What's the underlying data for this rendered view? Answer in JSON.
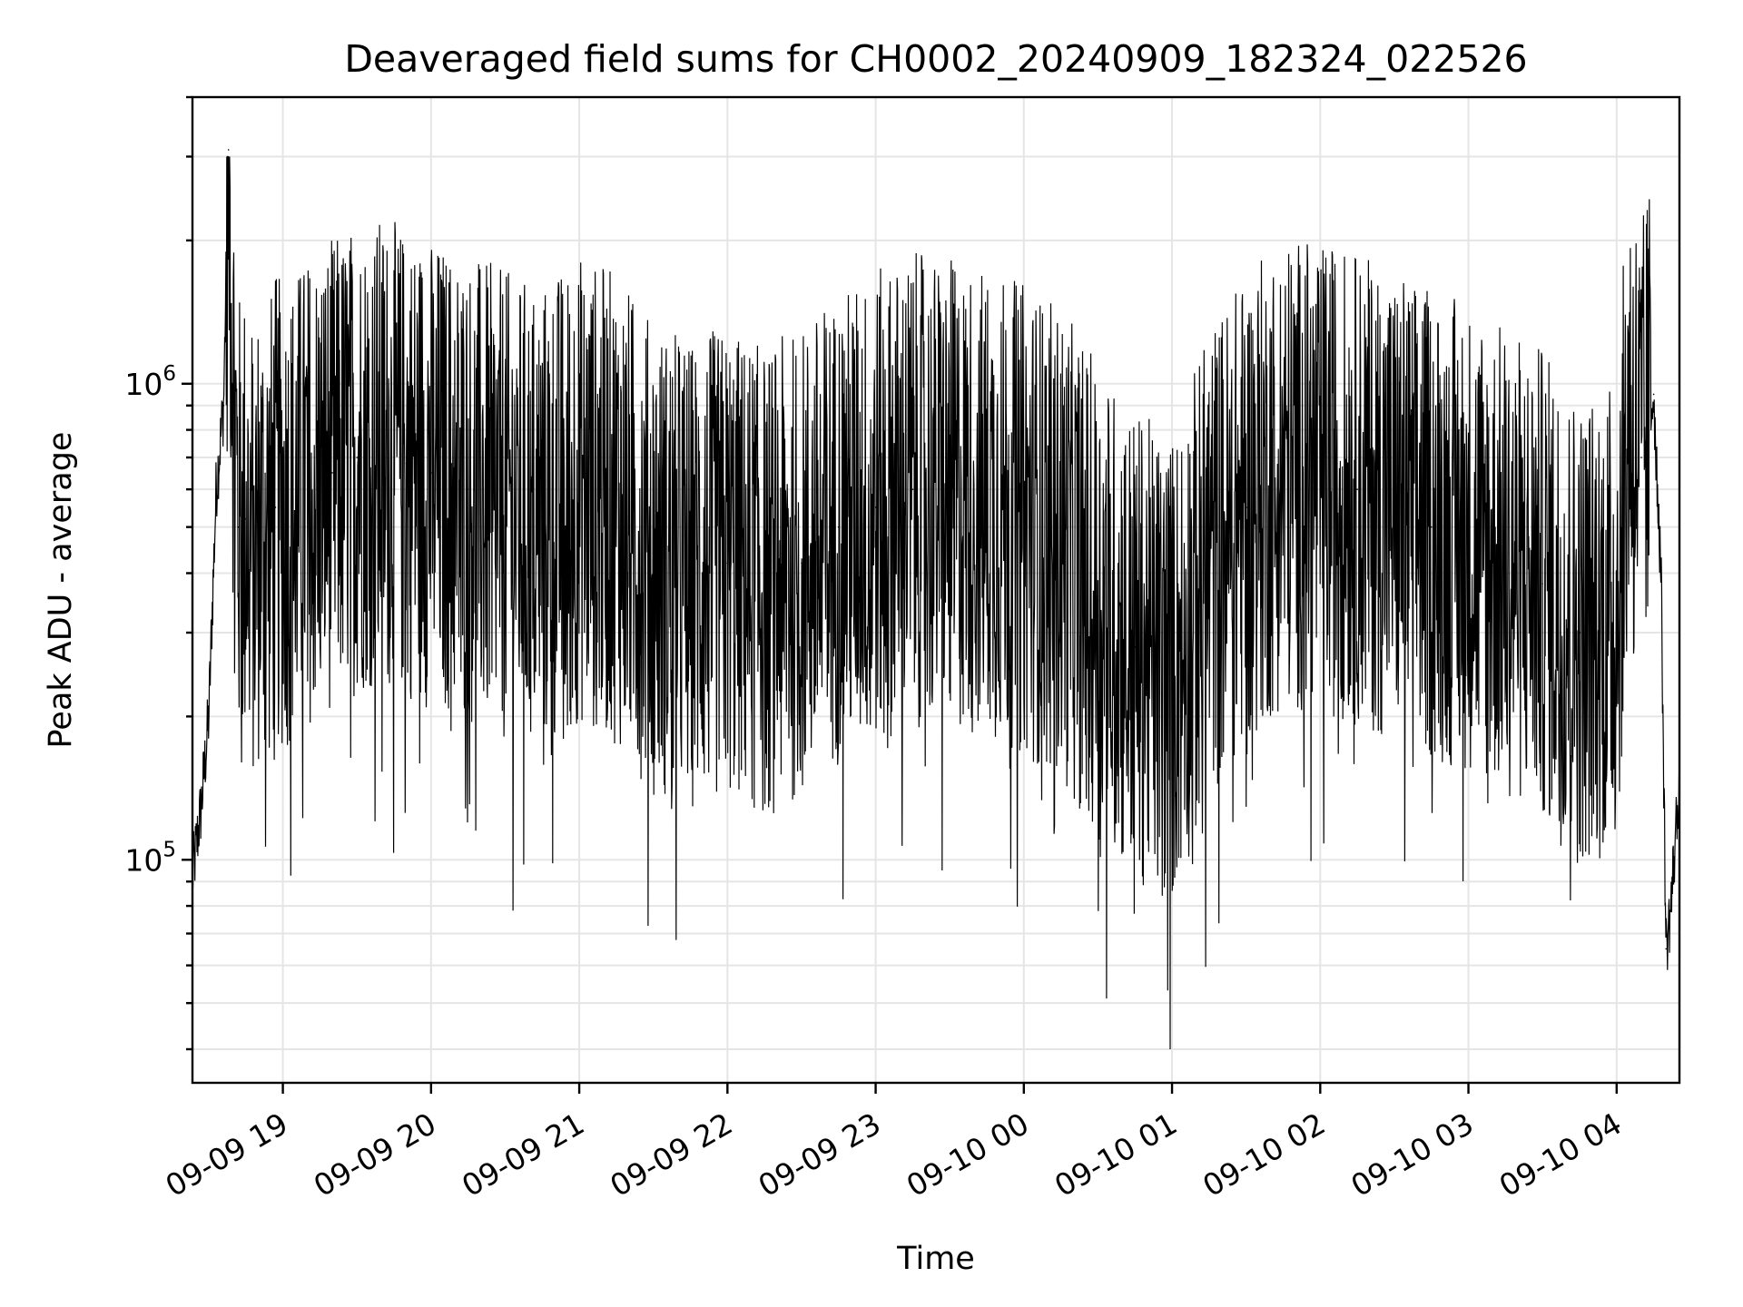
{
  "chart_data": {
    "type": "line",
    "title": "Deaveraged field sums for CH0002_20240909_182324_022526",
    "xlabel": "Time",
    "ylabel": "Peak ADU - average",
    "yscale": "log",
    "ylim": [
      34000,
      4000000
    ],
    "xlim": [
      "2024-09-09 18:23:24",
      "2024-09-10 04:25:26"
    ],
    "grid": true,
    "x_ticks": [
      "09-09 19",
      "09-09 20",
      "09-09 21",
      "09-09 22",
      "09-09 23",
      "09-10 00",
      "09-10 01",
      "09-10 02",
      "09-10 03",
      "09-10 04"
    ],
    "y_ticks": [
      {
        "value": 100000,
        "base": "10",
        "exp": "5"
      },
      {
        "value": 1000000,
        "base": "10",
        "exp": "6"
      }
    ],
    "series": [
      {
        "line_color": "#000000",
        "x": [
          "2024-09-09 18:23:24",
          "2024-09-09 18:27:00",
          "2024-09-09 18:30:00",
          "2024-09-09 18:33:00",
          "2024-09-09 18:36:00",
          "2024-09-09 18:38:00",
          "2024-09-09 18:40:00",
          "2024-09-09 18:42:00",
          "2024-09-09 18:45:00",
          "2024-09-09 18:48:00",
          "2024-09-09 18:51:00",
          "2024-09-09 18:54:00",
          "2024-09-09 18:57:00",
          "2024-09-09 19:00:00",
          "2024-09-09 19:10:00",
          "2024-09-09 19:20:00",
          "2024-09-09 19:30:00",
          "2024-09-09 19:40:00",
          "2024-09-09 19:50:00",
          "2024-09-09 20:00:00",
          "2024-09-09 20:15:00",
          "2024-09-09 20:30:00",
          "2024-09-09 20:45:00",
          "2024-09-09 21:00:00",
          "2024-09-09 21:15:00",
          "2024-09-09 21:30:00",
          "2024-09-09 21:45:00",
          "2024-09-09 22:00:00",
          "2024-09-09 22:15:00",
          "2024-09-09 22:30:00",
          "2024-09-09 22:45:00",
          "2024-09-09 23:00:00",
          "2024-09-09 23:15:00",
          "2024-09-09 23:30:00",
          "2024-09-09 23:45:00",
          "2024-09-10 00:00:00",
          "2024-09-10 00:15:00",
          "2024-09-10 00:30:00",
          "2024-09-10 00:45:00",
          "2024-09-10 01:00:00",
          "2024-09-10 01:15:00",
          "2024-09-10 01:30:00",
          "2024-09-10 01:45:00",
          "2024-09-10 02:00:00",
          "2024-09-10 02:15:00",
          "2024-09-10 02:30:00",
          "2024-09-10 02:45:00",
          "2024-09-10 03:00:00",
          "2024-09-10 03:15:00",
          "2024-09-10 03:30:00",
          "2024-09-10 03:45:00",
          "2024-09-10 04:00:00",
          "2024-09-10 04:05:00",
          "2024-09-10 04:10:00",
          "2024-09-10 04:15:00",
          "2024-09-10 04:18:00",
          "2024-09-10 04:20:00",
          "2024-09-10 04:22:00",
          "2024-09-10 04:25:26"
        ],
        "y": [
          92000,
          130000,
          200000,
          600000,
          900000,
          3100000,
          1000000,
          500000,
          520000,
          450000,
          500000,
          480000,
          550000,
          520000,
          600000,
          650000,
          700000,
          720000,
          680000,
          650000,
          600000,
          550000,
          520000,
          600000,
          550000,
          430000,
          400000,
          420000,
          380000,
          420000,
          500000,
          550000,
          600000,
          580000,
          560000,
          520000,
          460000,
          350000,
          280000,
          250000,
          420000,
          550000,
          650000,
          640000,
          600000,
          560000,
          500000,
          480000,
          420000,
          380000,
          300000,
          330000,
          900000,
          700000,
          950000,
          400000,
          65000,
          80000,
          150000
        ]
      }
    ]
  }
}
